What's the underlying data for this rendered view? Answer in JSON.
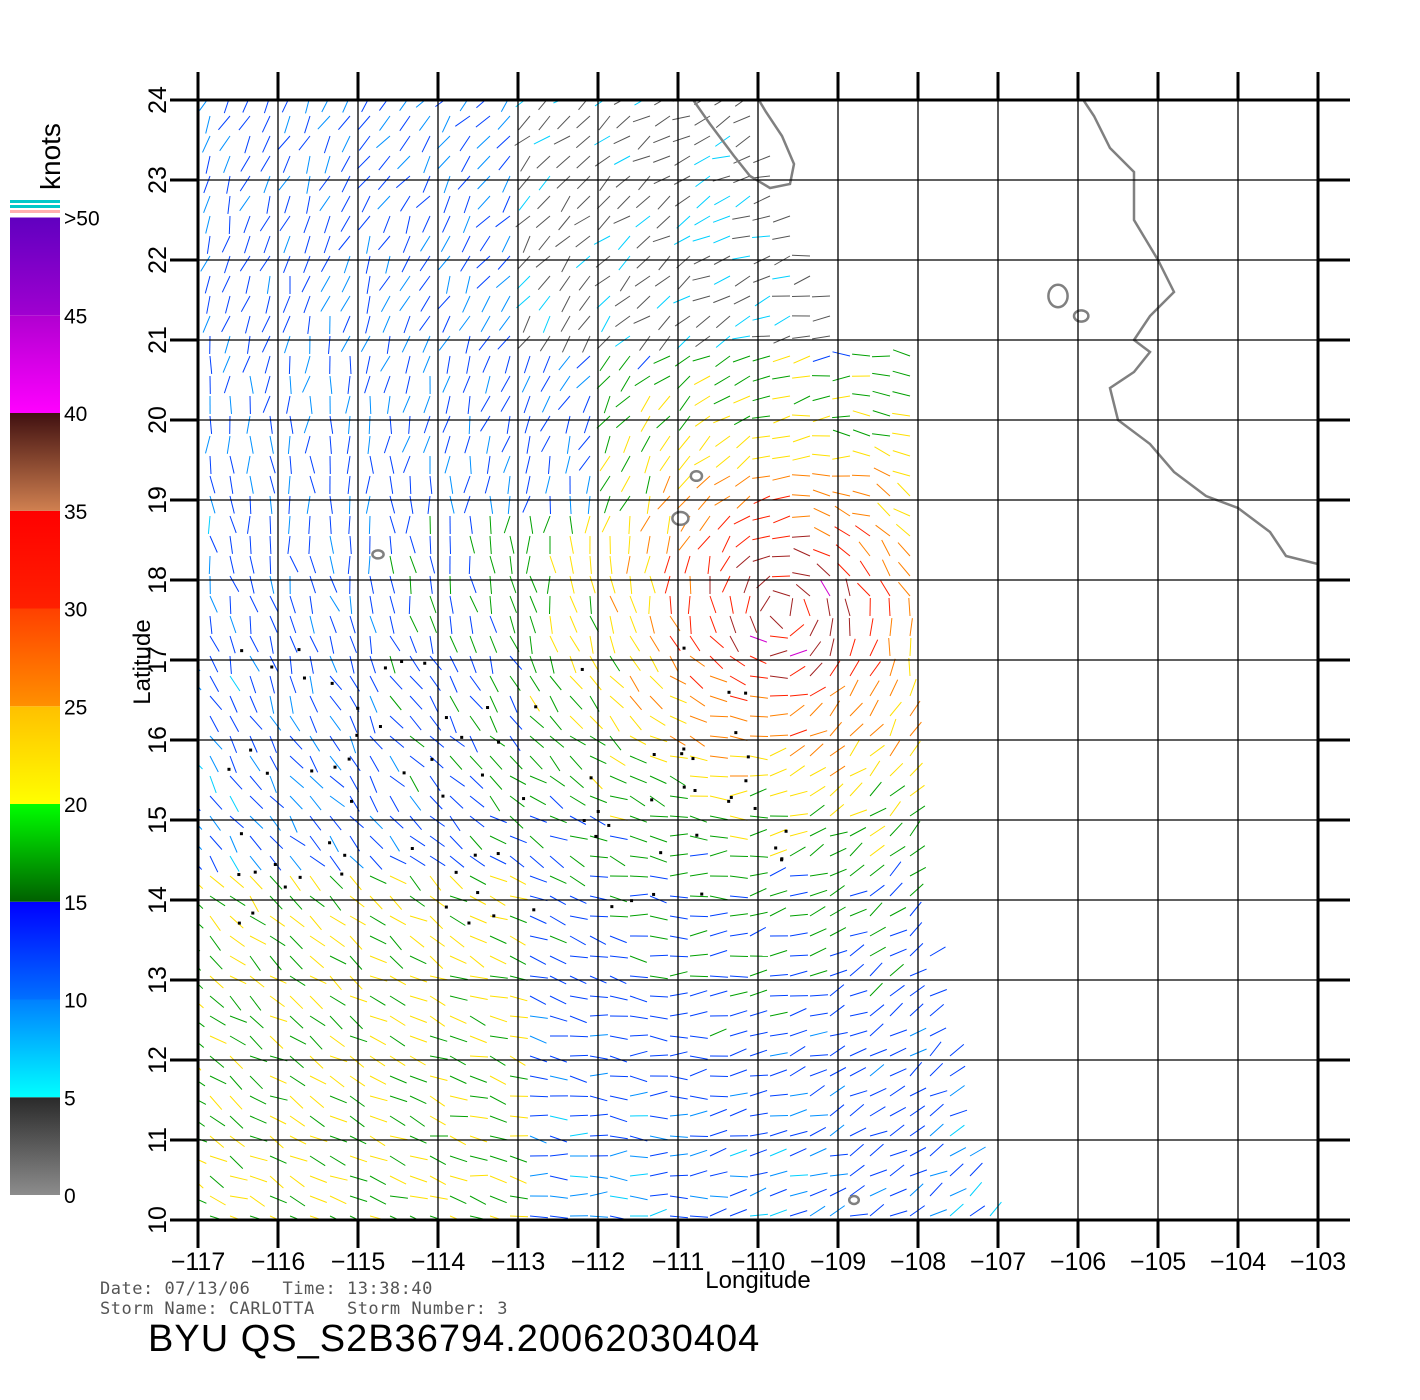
{
  "map": {
    "lon_ticks": [
      -117,
      -116,
      -115,
      -114,
      -113,
      -112,
      -111,
      -110,
      -109,
      -108,
      -107,
      -106,
      -105,
      -104,
      -103
    ],
    "lat_ticks": [
      10,
      11,
      12,
      13,
      14,
      15,
      16,
      17,
      18,
      19,
      20,
      21,
      22,
      23,
      24
    ],
    "lon_tick_labels": [
      "−117",
      "−116",
      "−115",
      "−114",
      "−113",
      "−112",
      "−111",
      "−110",
      "−109",
      "−108",
      "−107",
      "−106",
      "−105",
      "−104",
      "−103"
    ],
    "lat_tick_labels": [
      "10",
      "11",
      "12",
      "13",
      "14",
      "15",
      "16",
      "17",
      "18",
      "19",
      "20",
      "21",
      "22",
      "23",
      "24"
    ],
    "xlabel": "Longitude",
    "ylabel": "Latitude",
    "lon_range": [
      -117,
      -103
    ],
    "lat_range": [
      10,
      24
    ],
    "grid": true,
    "coastline_color": "#808080",
    "swath_edge_lon": [
      [
        24,
        -108.0
      ],
      [
        18,
        -108.0
      ],
      [
        14,
        -108.0
      ],
      [
        10,
        -107.2
      ]
    ]
  },
  "colorbar": {
    "unit_label": "knots",
    "tick_labels": [
      "0",
      "5",
      "10",
      "15",
      "20",
      "25",
      "30",
      "35",
      "40",
      "45",
      ">50"
    ],
    "bands": [
      {
        "from": 0,
        "to": 5,
        "c1": "#8c8c8c",
        "c2": "#2a2a2a"
      },
      {
        "from": 5,
        "to": 10,
        "c1": "#00ffff",
        "c2": "#0080ff"
      },
      {
        "from": 10,
        "to": 15,
        "c1": "#0070ff",
        "c2": "#0000ff"
      },
      {
        "from": 15,
        "to": 20,
        "c1": "#006000",
        "c2": "#00ff00"
      },
      {
        "from": 20,
        "to": 25,
        "c1": "#ffff00",
        "c2": "#ffc000"
      },
      {
        "from": 25,
        "to": 30,
        "c1": "#ff9000",
        "c2": "#ff4000"
      },
      {
        "from": 30,
        "to": 35,
        "c1": "#ff2000",
        "c2": "#ff0000"
      },
      {
        "from": 35,
        "to": 40,
        "c1": "#d08050",
        "c2": "#401010"
      },
      {
        "from": 40,
        "to": 45,
        "c1": "#ff00ff",
        "c2": "#b000d0"
      },
      {
        "from": 45,
        "to": 50,
        "c1": "#a000d0",
        "c2": "#6000c0"
      }
    ]
  },
  "info": {
    "date_label": "Date:",
    "date": "07/13/06",
    "time_label": "Time:",
    "time": "13:38:40",
    "storm_name_label": "Storm Name:",
    "storm_name": "CARLOTTA",
    "storm_number_label": "Storm Number:",
    "storm_number": "3",
    "product": "BYU  QS_S2B36794.20062030404"
  }
}
